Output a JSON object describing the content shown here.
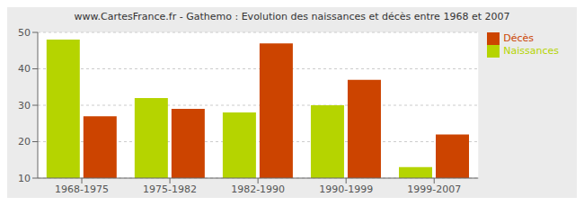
{
  "chart_data": {
    "type": "bar",
    "title": "www.CartesFrance.fr - Gathemo : Evolution des naissances et décès entre 1968 et 2007",
    "categories": [
      "1968-1975",
      "1975-1982",
      "1982-1990",
      "1990-1999",
      "1999-2007"
    ],
    "series": [
      {
        "name": "Naissances",
        "color": "#b5d400",
        "values": [
          48,
          32,
          28,
          30,
          13
        ]
      },
      {
        "name": "Décès",
        "color": "#cc4400",
        "values": [
          27,
          29,
          47,
          37,
          22
        ]
      }
    ],
    "ylim": [
      10,
      50
    ],
    "yticks": [
      10,
      20,
      30,
      40,
      50
    ],
    "grid": true,
    "legend": "upper right"
  }
}
